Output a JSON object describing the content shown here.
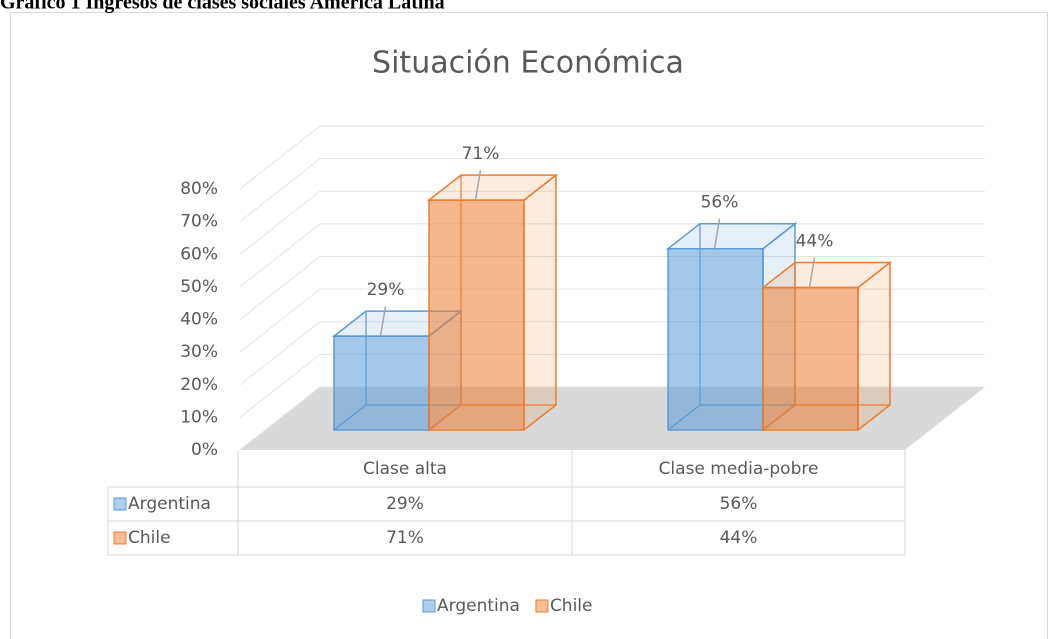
{
  "caption": "Gráfico 1 Ingresos de clases sociales América Latina",
  "chart_data": {
    "type": "bar3d",
    "title": "Situación Económica",
    "categories": [
      "Clase alta",
      "Clase media-pobre"
    ],
    "series": [
      {
        "name": "Argentina",
        "color": "#5b9bd5",
        "values": [
          29,
          56
        ],
        "value_labels": [
          "29%",
          "56%"
        ]
      },
      {
        "name": "Chile",
        "color": "#ed7d31",
        "values": [
          71,
          44
        ],
        "value_labels": [
          "71%",
          "44%"
        ]
      }
    ],
    "ylim": [
      0,
      80
    ],
    "yticks": [
      {
        "value": 0,
        "label": "0%"
      },
      {
        "value": 10,
        "label": "10%"
      },
      {
        "value": 20,
        "label": "20%"
      },
      {
        "value": 30,
        "label": "30%"
      },
      {
        "value": 40,
        "label": "40%"
      },
      {
        "value": 50,
        "label": "50%"
      },
      {
        "value": 60,
        "label": "60%"
      },
      {
        "value": 70,
        "label": "70%"
      },
      {
        "value": 80,
        "label": "80%"
      }
    ],
    "grid": true,
    "legend": "bottom",
    "data_table": true
  }
}
